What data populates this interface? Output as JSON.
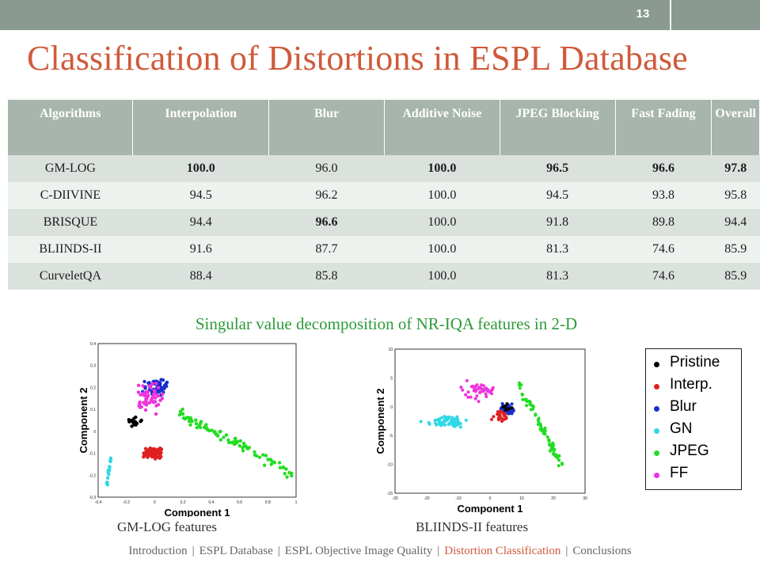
{
  "slide": {
    "number": "13",
    "title": "Classification of Distortions in ESPL Database",
    "subtitle": "Singular value decomposition of NR-IQA features in 2-D"
  },
  "table": {
    "columns": [
      "Algorithms",
      "Interpolation",
      "Blur",
      "Additive Noise",
      "JPEG Blocking",
      "Fast Fading",
      "Overall"
    ],
    "rows": [
      {
        "algorithm": "GM-LOG",
        "values": [
          "100.0",
          "96.0",
          "100.0",
          "96.5",
          "96.6",
          "97.8"
        ],
        "bold": [
          true,
          false,
          true,
          true,
          true,
          true
        ]
      },
      {
        "algorithm": "C-DIIVINE",
        "values": [
          "94.5",
          "96.2",
          "100.0",
          "94.5",
          "93.8",
          "95.8"
        ],
        "bold": [
          false,
          false,
          false,
          false,
          false,
          false
        ]
      },
      {
        "algorithm": "BRISQUE",
        "values": [
          "94.4",
          "96.6",
          "100.0",
          "91.8",
          "89.8",
          "94.4"
        ],
        "bold": [
          false,
          true,
          false,
          false,
          false,
          false
        ]
      },
      {
        "algorithm": "BLIINDS-II",
        "values": [
          "91.6",
          "87.7",
          "100.0",
          "81.3",
          "74.6",
          "85.9"
        ],
        "bold": [
          false,
          false,
          false,
          false,
          false,
          false
        ]
      },
      {
        "algorithm": "CurveletQA",
        "values": [
          "88.4",
          "85.8",
          "100.0",
          "81.3",
          "74.6",
          "85.9"
        ],
        "bold": [
          false,
          false,
          false,
          false,
          false,
          false
        ]
      }
    ]
  },
  "plots": {
    "left": {
      "caption": "GM-LOG features",
      "xlabel": "Component 1",
      "ylabel": "Component 2",
      "xticks": [
        "-0.4",
        "-0.2",
        "0",
        "0.2",
        "0.4",
        "0.6",
        "0.8",
        "1"
      ],
      "yticks": [
        "0.4",
        "0.3",
        "0.2",
        "0.1",
        "0",
        "-0.1",
        "-0.2",
        "-0.3"
      ]
    },
    "right": {
      "caption": "BLIINDS-II features",
      "xlabel": "Component 1",
      "ylabel": "Component 2",
      "xticks": [
        "-30",
        "-20",
        "-10",
        "0",
        "10",
        "20",
        "30"
      ],
      "yticks": [
        "10",
        "5",
        "0",
        "-5",
        "-10",
        "-15"
      ]
    }
  },
  "legend": [
    {
      "label": "Pristine",
      "color": "#000000"
    },
    {
      "label": "Interp.",
      "color": "#e02020"
    },
    {
      "label": "Blur",
      "color": "#1a2ecf"
    },
    {
      "label": "GN",
      "color": "#2fd8e6"
    },
    {
      "label": "JPEG",
      "color": "#22dd22"
    },
    {
      "label": "FF",
      "color": "#ee33dd"
    }
  ],
  "footer": {
    "items": [
      "Introduction",
      "ESPL Database",
      "ESPL Objective Image Quality",
      "Distortion Classification",
      "Conclusions"
    ],
    "active_index": 3
  }
}
